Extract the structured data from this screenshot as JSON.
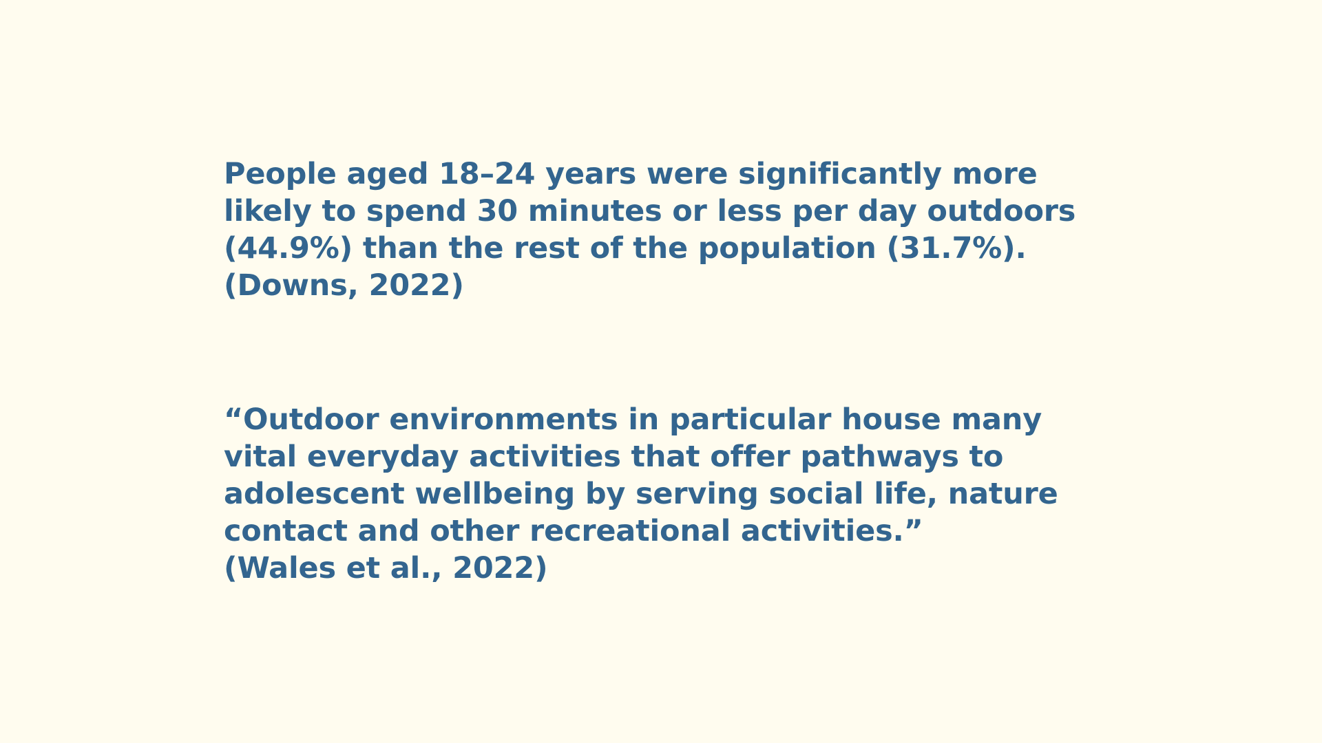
{
  "slide": {
    "background_color": "#FFFCEF",
    "text_color": "#33658F",
    "stat_block": {
      "lines": [
        "People aged 18–24 years were significantly more",
        "likely to spend 30 minutes or less per day outdoors",
        "(44.9%) than the rest of the population (31.7%).",
        "(Downs, 2022)"
      ]
    },
    "quote_block": {
      "lines": [
        "“Outdoor environments in particular house many",
        "vital everyday activities that offer pathways to",
        "adolescent wellbeing by serving social life, nature",
        "contact and other recreational activities.”",
        "(Wales et al., 2022)"
      ]
    }
  }
}
